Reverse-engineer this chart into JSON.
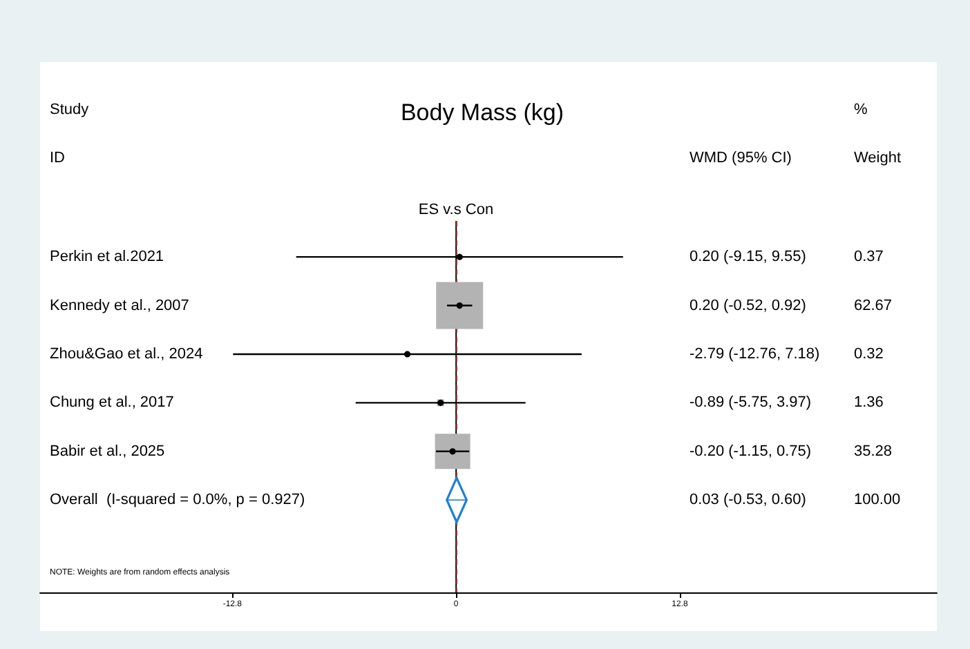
{
  "chart_data": {
    "type": "bubble",
    "title": "Body Mass (kg)",
    "orientation": "horizontal",
    "categories": [
      "Perkin et al.2021",
      "Kennedy et al., 2007",
      "Zhou&Gao et al., 2024",
      "Chung et al., 2017",
      "Babir et al., 2025",
      "Overall  (I-squared = 0.0%, p = 0.927)"
    ],
    "xlim": [
      -23.8,
      27.5
    ],
    "xticks": [
      -12.8,
      0,
      12.8
    ],
    "marker": "square",
    "grid": false,
    "series": [
      {
        "color": "#b3b3b3",
        "values": [
          0.2,
          0.2,
          -2.79,
          -0.89,
          -0.2,
          null
        ],
        "errors": [
          [
            -9.15,
            9.55
          ],
          [
            -0.52,
            0.92
          ],
          [
            -12.76,
            7.18
          ],
          [
            -5.75,
            3.97
          ],
          [
            -1.15,
            0.75
          ],
          null
        ],
        "sizes": [
          0.0059,
          1,
          0.0051,
          0.0217,
          0.5629,
          null
        ]
      },
      {
        "marker": "diamond",
        "color": "#1e7fd6",
        "values": [
          null,
          null,
          null,
          null,
          null,
          0.03
        ],
        "errors": [
          null,
          null,
          null,
          null,
          null,
          [
            -0.53,
            0.6
          ]
        ]
      }
    ],
    "ref_lines": [
      {
        "axis": "x",
        "value": 0,
        "color": "#000000"
      },
      {
        "axis": "x",
        "value": 0.03,
        "color": "#a0302a",
        "line_style": "dashed"
      }
    ],
    "annotations": [
      "Study",
      "ID",
      "%",
      "WMD (95% CI)",
      "Weight",
      "ES v.s Con",
      "NOTE: Weights are from random effects analysis",
      "0.20 (-9.15, 9.55)",
      "0.20 (-0.52, 0.92)",
      "-2.79 (-12.76, 7.18)",
      "-0.89 (-5.75, 3.97)",
      "-0.20 (-1.15, 0.75)",
      "0.03 (-0.53, 0.60)",
      "0.37",
      "62.67",
      "0.32",
      "1.36",
      "35.28",
      "100.00"
    ]
  }
}
